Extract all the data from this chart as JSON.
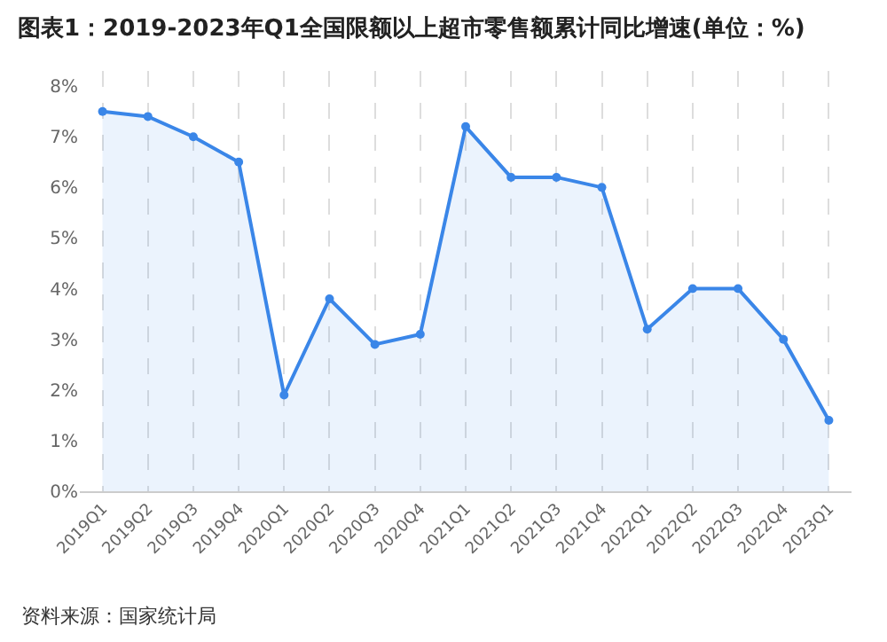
{
  "chart_data": {
    "type": "area",
    "title": "图表1：2019-2023年Q1全国限额以上超市零售额累计同比增速(单位：%)",
    "categories": [
      "2019Q1",
      "2019Q2",
      "2019Q3",
      "2019Q4",
      "2020Q1",
      "2020Q2",
      "2020Q3",
      "2020Q4",
      "2021Q1",
      "2021Q2",
      "2021Q3",
      "2021Q4",
      "2022Q1",
      "2022Q2",
      "2022Q3",
      "2022Q4",
      "2023Q1"
    ],
    "series": [
      {
        "color": "#3a86e8",
        "values": [
          7.5,
          7.4,
          7.0,
          6.5,
          1.9,
          3.8,
          2.9,
          3.1,
          7.2,
          6.2,
          6.2,
          6.0,
          3.2,
          4.0,
          4.0,
          3.0,
          1.4
        ]
      }
    ],
    "ylim": [
      0,
      8.3
    ],
    "yticks": [
      {
        "value": 0,
        "label": "0%"
      },
      {
        "value": 1,
        "label": "1%"
      },
      {
        "value": 2,
        "label": "2%"
      },
      {
        "value": 3,
        "label": "3%"
      },
      {
        "value": 4,
        "label": "4%"
      },
      {
        "value": 5,
        "label": "5%"
      },
      {
        "value": 6,
        "label": "6%"
      },
      {
        "value": 7,
        "label": "7%"
      },
      {
        "value": 8,
        "label": "8%"
      }
    ],
    "grid": "x",
    "marker": "circle",
    "line_style": "solid",
    "annotations": [
      "资料来源：国家统计局"
    ]
  }
}
